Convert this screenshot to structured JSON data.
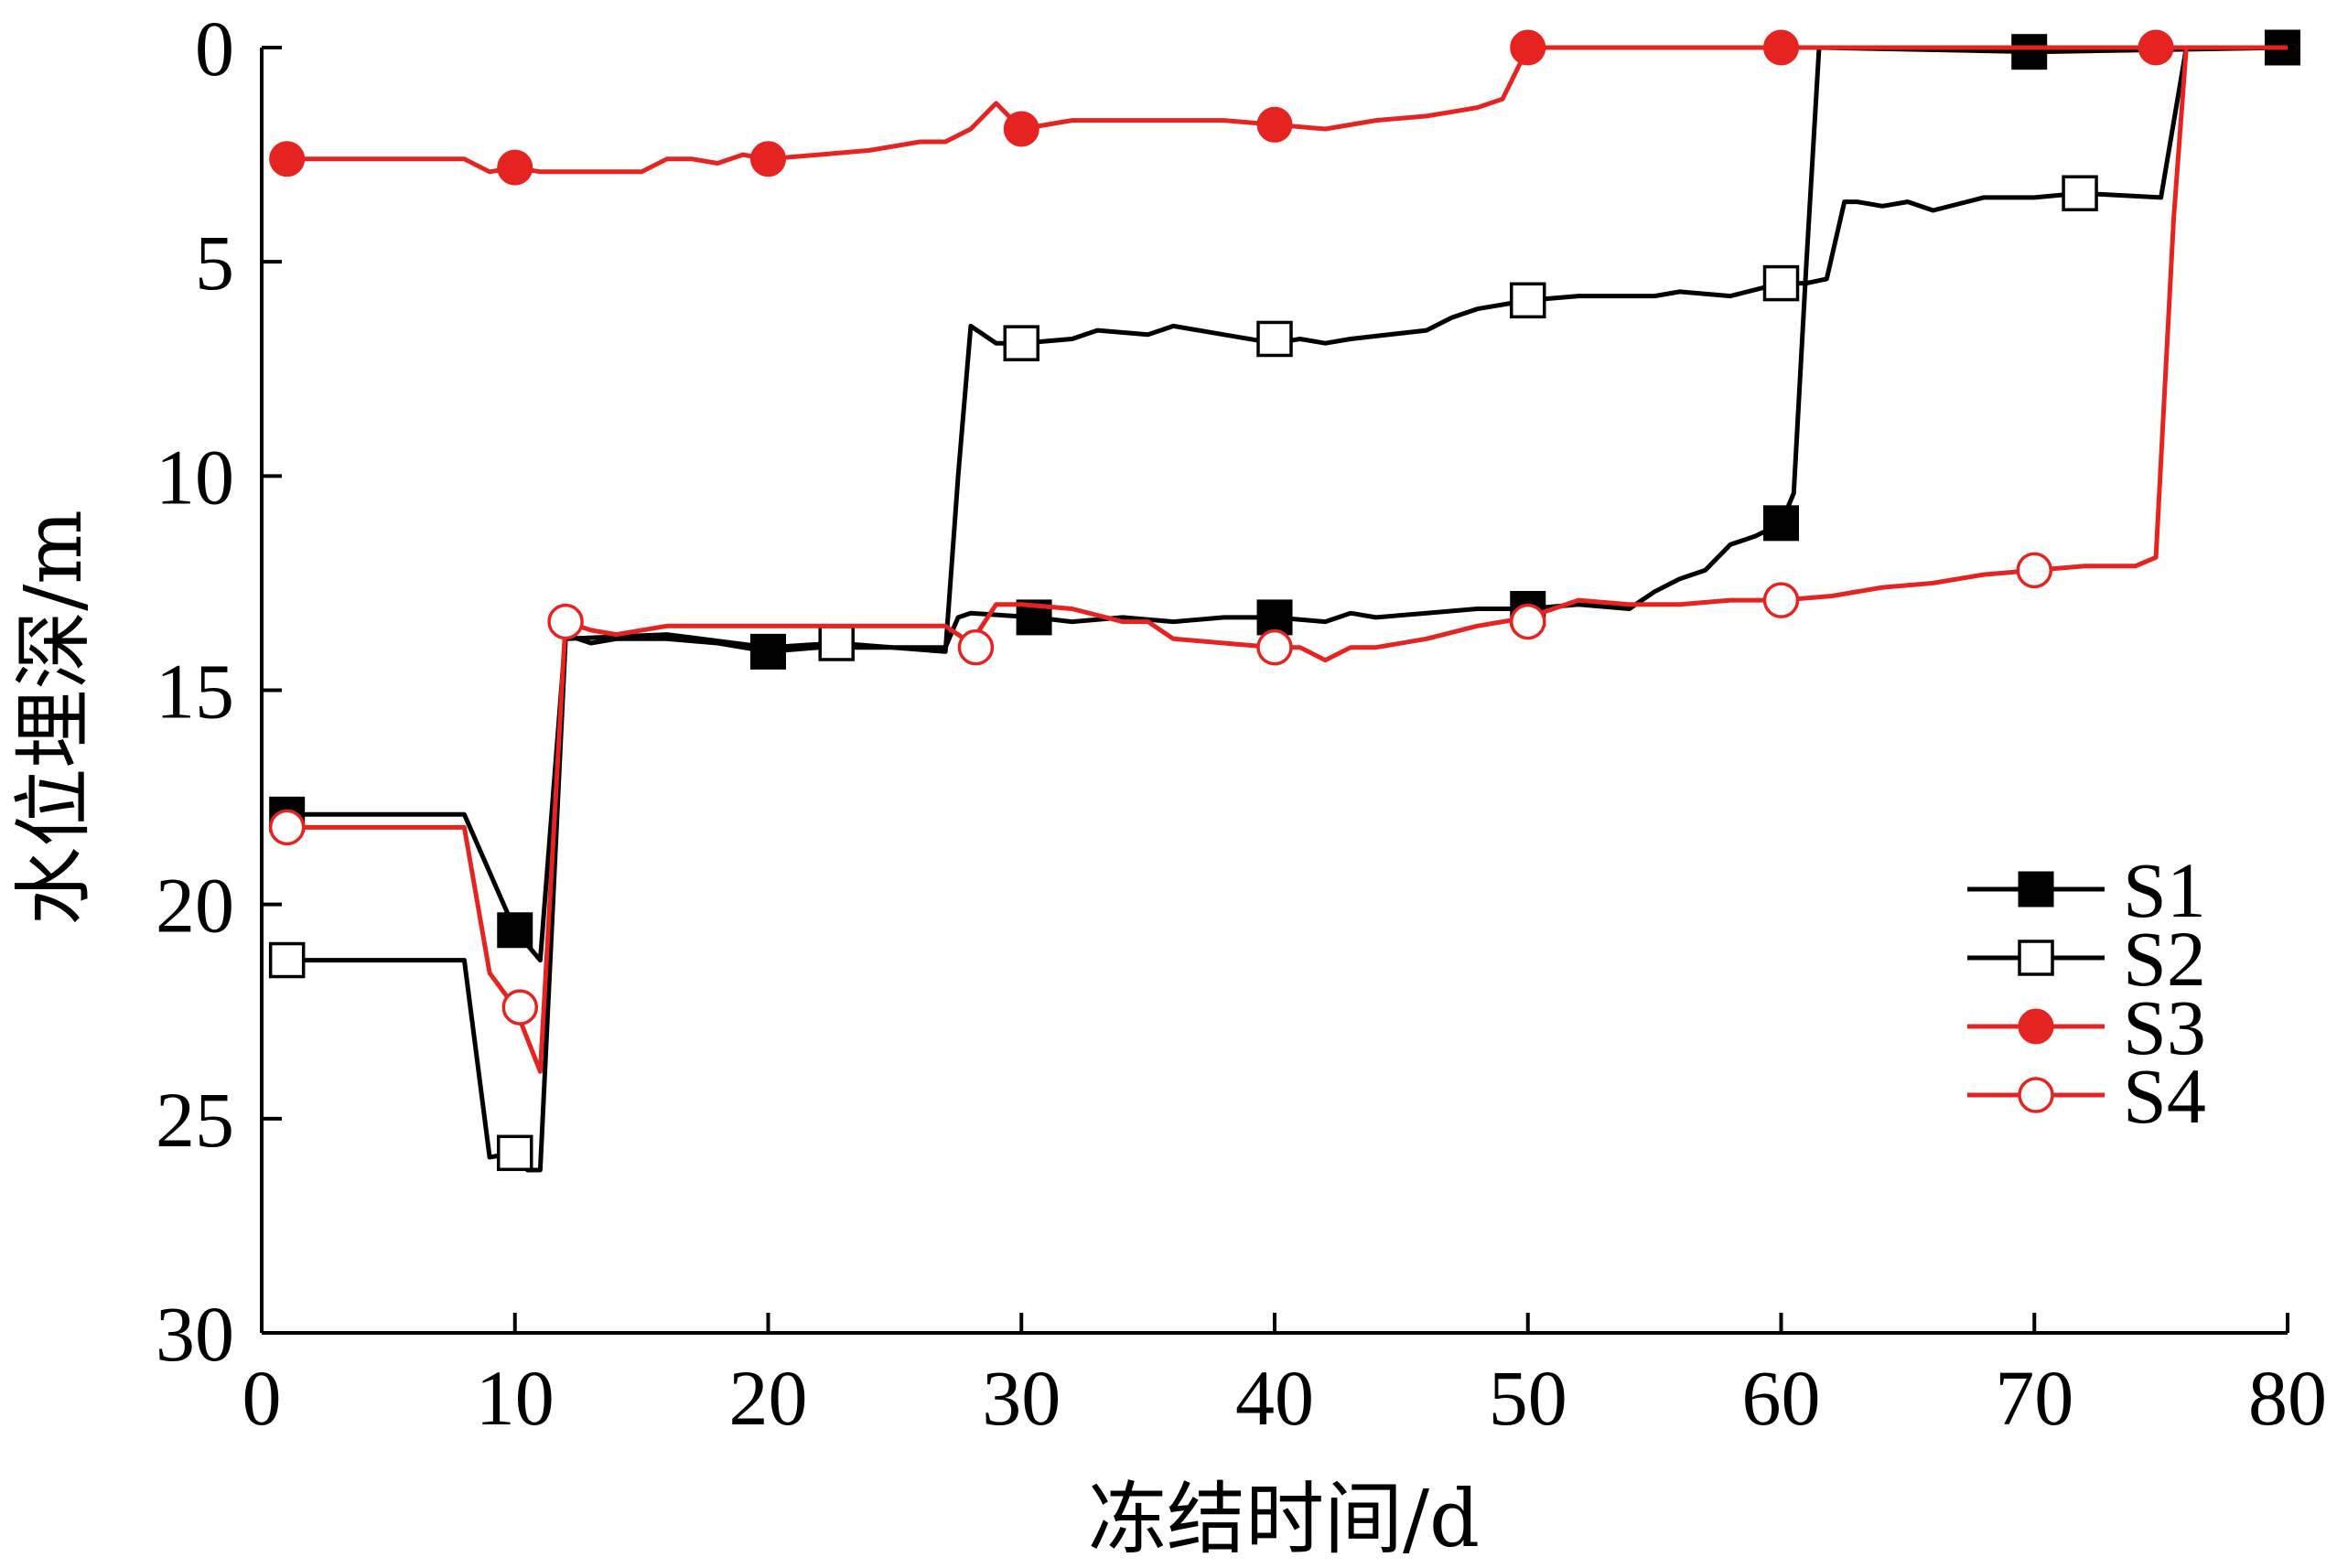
{
  "chart_data": {
    "type": "line",
    "xlabel": "冻结时间/d",
    "ylabel": "水位埋深/m",
    "xlim": [
      0,
      80
    ],
    "ylim": [
      0,
      30
    ],
    "y_inverted": true,
    "x_origin": "top",
    "xticks": [
      0,
      10,
      20,
      30,
      40,
      50,
      60,
      70,
      80
    ],
    "yticks": [
      0,
      5,
      10,
      15,
      20,
      25,
      30
    ],
    "grid": false,
    "legend_position": "bottom-right",
    "series": [
      {
        "name": "S1",
        "color": "#000000",
        "marker": "filled-square",
        "points": [
          [
            1,
            17.9
          ],
          [
            8,
            17.9
          ],
          [
            10,
            20.6
          ],
          [
            11,
            21.3
          ],
          [
            12,
            13.7
          ],
          [
            13,
            13.9
          ],
          [
            14,
            13.8
          ],
          [
            16,
            13.8
          ],
          [
            18,
            13.9
          ],
          [
            20,
            14.1
          ],
          [
            22,
            14.0
          ],
          [
            24,
            14.0
          ],
          [
            26,
            14.0
          ],
          [
            27,
            14.0
          ],
          [
            27.5,
            13.3
          ],
          [
            28,
            13.2
          ],
          [
            30.5,
            13.3
          ],
          [
            32,
            13.4
          ],
          [
            34,
            13.3
          ],
          [
            36,
            13.4
          ],
          [
            38,
            13.3
          ],
          [
            40,
            13.3
          ],
          [
            42,
            13.4
          ],
          [
            43,
            13.2
          ],
          [
            44,
            13.3
          ],
          [
            46,
            13.2
          ],
          [
            48,
            13.1
          ],
          [
            50,
            13.1
          ],
          [
            52,
            13.0
          ],
          [
            54,
            13.1
          ],
          [
            55,
            12.7
          ],
          [
            56,
            12.4
          ],
          [
            57,
            12.2
          ],
          [
            58,
            11.6
          ],
          [
            59,
            11.4
          ],
          [
            60,
            11.1
          ],
          [
            60.5,
            10.4
          ],
          [
            61,
            5.0
          ],
          [
            61.5,
            0
          ],
          [
            70,
            0.1
          ],
          [
            80,
            0
          ]
        ],
        "markers": [
          [
            1,
            17.9
          ],
          [
            10,
            20.6
          ],
          [
            20,
            14.1
          ],
          [
            30.5,
            13.3
          ],
          [
            40,
            13.3
          ],
          [
            50,
            13.1
          ],
          [
            60,
            11.1
          ],
          [
            69.8,
            0.1
          ],
          [
            79.8,
            0
          ]
        ]
      },
      {
        "name": "S2",
        "color": "#000000",
        "marker": "open-square",
        "points": [
          [
            1,
            21.3
          ],
          [
            8,
            21.3
          ],
          [
            9,
            25.9
          ],
          [
            10,
            25.8
          ],
          [
            10.5,
            26.2
          ],
          [
            11,
            26.2
          ],
          [
            12,
            13.8
          ],
          [
            16,
            13.7
          ],
          [
            20,
            14.0
          ],
          [
            22.7,
            13.9
          ],
          [
            27,
            14.1
          ],
          [
            27.5,
            10.0
          ],
          [
            28,
            6.5
          ],
          [
            29,
            6.9
          ],
          [
            30,
            6.9
          ],
          [
            32,
            6.8
          ],
          [
            33,
            6.6
          ],
          [
            35,
            6.7
          ],
          [
            36,
            6.5
          ],
          [
            38,
            6.7
          ],
          [
            40,
            6.9
          ],
          [
            41,
            6.8
          ],
          [
            42,
            6.9
          ],
          [
            43,
            6.8
          ],
          [
            46,
            6.6
          ],
          [
            47,
            6.3
          ],
          [
            48,
            6.1
          ],
          [
            50,
            5.9
          ],
          [
            52,
            5.8
          ],
          [
            54,
            5.8
          ],
          [
            55,
            5.8
          ],
          [
            56,
            5.7
          ],
          [
            58,
            5.8
          ],
          [
            60,
            5.5
          ],
          [
            61,
            5.5
          ],
          [
            61.8,
            5.4
          ],
          [
            62.5,
            3.6
          ],
          [
            63,
            3.6
          ],
          [
            64,
            3.7
          ],
          [
            65,
            3.6
          ],
          [
            66,
            3.8
          ],
          [
            68,
            3.5
          ],
          [
            70,
            3.5
          ],
          [
            71.8,
            3.4
          ],
          [
            75,
            3.5
          ],
          [
            76,
            0
          ],
          [
            80,
            0
          ]
        ],
        "markers": [
          [
            1,
            21.3
          ],
          [
            10,
            25.8
          ],
          [
            22.7,
            13.9
          ],
          [
            30,
            6.9
          ],
          [
            40,
            6.8
          ],
          [
            50,
            5.9
          ],
          [
            60,
            5.5
          ],
          [
            71.8,
            3.4
          ]
        ]
      },
      {
        "name": "S3",
        "color": "#e52421",
        "marker": "filled-circle",
        "points": [
          [
            1,
            2.6
          ],
          [
            8,
            2.6
          ],
          [
            9,
            2.9
          ],
          [
            10,
            2.8
          ],
          [
            11,
            2.9
          ],
          [
            14,
            2.9
          ],
          [
            15,
            2.9
          ],
          [
            16,
            2.6
          ],
          [
            17,
            2.6
          ],
          [
            18,
            2.7
          ],
          [
            19,
            2.5
          ],
          [
            20,
            2.6
          ],
          [
            22,
            2.5
          ],
          [
            24,
            2.4
          ],
          [
            26,
            2.2
          ],
          [
            27,
            2.2
          ],
          [
            28,
            1.9
          ],
          [
            29,
            1.3
          ],
          [
            30,
            1.9
          ],
          [
            32,
            1.7
          ],
          [
            34,
            1.7
          ],
          [
            36,
            1.7
          ],
          [
            38,
            1.7
          ],
          [
            40,
            1.8
          ],
          [
            42,
            1.9
          ],
          [
            44,
            1.7
          ],
          [
            46,
            1.6
          ],
          [
            47,
            1.5
          ],
          [
            48,
            1.4
          ],
          [
            49,
            1.2
          ],
          [
            50,
            0
          ],
          [
            60,
            0
          ],
          [
            70,
            0
          ],
          [
            75,
            0
          ],
          [
            80,
            0
          ]
        ],
        "markers": [
          [
            1,
            2.6
          ],
          [
            10,
            2.8
          ],
          [
            20,
            2.6
          ],
          [
            30,
            1.9
          ],
          [
            40,
            1.8
          ],
          [
            50,
            0
          ],
          [
            60,
            0
          ],
          [
            74.8,
            0
          ]
        ]
      },
      {
        "name": "S4",
        "color": "#e52421",
        "marker": "open-circle",
        "points": [
          [
            1,
            18.2
          ],
          [
            8,
            18.2
          ],
          [
            9,
            21.6
          ],
          [
            10,
            22.4
          ],
          [
            11,
            23.9
          ],
          [
            12,
            13.4
          ],
          [
            13,
            13.6
          ],
          [
            14,
            13.7
          ],
          [
            16,
            13.5
          ],
          [
            18,
            13.5
          ],
          [
            20,
            13.5
          ],
          [
            22,
            13.5
          ],
          [
            24,
            13.5
          ],
          [
            26,
            13.5
          ],
          [
            27,
            13.5
          ],
          [
            28,
            13.9
          ],
          [
            29,
            13.0
          ],
          [
            30,
            13.0
          ],
          [
            32,
            13.1
          ],
          [
            34,
            13.4
          ],
          [
            35,
            13.4
          ],
          [
            36,
            13.8
          ],
          [
            38,
            13.9
          ],
          [
            40,
            14.0
          ],
          [
            41,
            14.0
          ],
          [
            42,
            14.3
          ],
          [
            43,
            14.0
          ],
          [
            44,
            14.0
          ],
          [
            46,
            13.8
          ],
          [
            48,
            13.5
          ],
          [
            50,
            13.3
          ],
          [
            52,
            12.9
          ],
          [
            54,
            13.0
          ],
          [
            56,
            13.0
          ],
          [
            58,
            12.9
          ],
          [
            60,
            12.9
          ],
          [
            62,
            12.8
          ],
          [
            64,
            12.6
          ],
          [
            66,
            12.5
          ],
          [
            68,
            12.3
          ],
          [
            70,
            12.2
          ],
          [
            72,
            12.1
          ],
          [
            74,
            12.1
          ],
          [
            74.8,
            11.9
          ],
          [
            75.5,
            4.0
          ],
          [
            76,
            0
          ],
          [
            80,
            0
          ]
        ],
        "markers": [
          [
            1,
            18.2
          ],
          [
            10.2,
            22.4
          ],
          [
            12,
            13.4
          ],
          [
            28.2,
            14.0
          ],
          [
            40,
            14.0
          ],
          [
            50,
            13.4
          ],
          [
            60,
            12.9
          ],
          [
            70,
            12.2
          ]
        ]
      }
    ]
  }
}
